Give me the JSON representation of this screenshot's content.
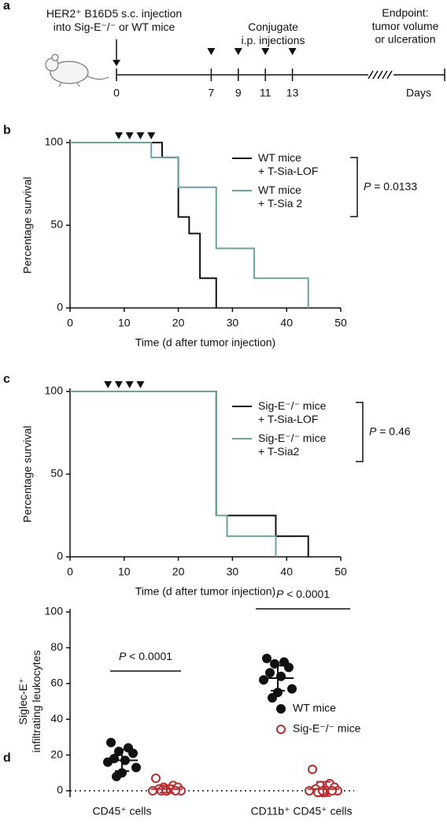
{
  "timeline": {
    "label": "a",
    "left_note": "HER2⁺ B16D5 s.c. injection\ninto Sig-E⁻/⁻ or WT mice",
    "middle_note": "Conjugate\ni.p. injections",
    "right_note": "Endpoint:\ntumor volume\nor ulceration",
    "days": [
      0,
      7,
      9,
      11,
      13
    ],
    "injection_days": [
      7,
      9,
      11,
      13
    ],
    "unit": "Days"
  },
  "chart_data": [
    {
      "type": "step",
      "label": "b",
      "xlabel": "Time (d after tumor injection)",
      "ylabel": "Percentage survival",
      "xlim": [
        0,
        50
      ],
      "xticks": [
        0,
        10,
        20,
        30,
        40,
        50
      ],
      "ylim": [
        0,
        100
      ],
      "yticks": [
        0,
        50,
        100
      ],
      "injection_days": [
        9,
        11,
        13,
        15
      ],
      "series": [
        {
          "name": "WT mice\n+ T-Sia-LOF",
          "color": "#111111",
          "x": [
            0,
            17,
            20,
            22,
            24,
            27
          ],
          "values": [
            100,
            91,
            55,
            45,
            18,
            0
          ]
        },
        {
          "name": "WT mice\n+ T-Sia 2",
          "color": "#6aa59d",
          "x": [
            0,
            15,
            20,
            27,
            34,
            44
          ],
          "values": [
            100,
            91,
            73,
            36,
            18,
            0
          ]
        }
      ],
      "pvalue": "P = 0.0133"
    },
    {
      "type": "step",
      "label": "c",
      "xlabel": "Time (d after tumor injection)",
      "ylabel": "Percentage survival",
      "xlim": [
        0,
        50
      ],
      "xticks": [
        0,
        10,
        20,
        30,
        40,
        50
      ],
      "ylim": [
        0,
        100
      ],
      "yticks": [
        0,
        50,
        100
      ],
      "injection_days": [
        7,
        9,
        11,
        13
      ],
      "series": [
        {
          "name": "Sig-E⁻/⁻ mice\n+ T-Sia-LOF",
          "color": "#111111",
          "x": [
            0,
            27,
            38,
            44
          ],
          "values": [
            100,
            25,
            12.5,
            0
          ]
        },
        {
          "name": "Sig-E⁻/⁻ mice\n+ T-Sia2",
          "color": "#6aa59d",
          "x": [
            0,
            27,
            29,
            38
          ],
          "values": [
            100,
            25,
            12.5,
            0
          ]
        }
      ],
      "pvalue": "P = 0.46"
    },
    {
      "type": "dot",
      "label": "d",
      "ylabel": "Siglec-E⁺\ninfiltrating leukocytes",
      "categories": [
        "CD45⁺ cells",
        "CD11b⁺ CD45⁺ cells"
      ],
      "ylim": [
        0,
        100
      ],
      "yticks": [
        0,
        20,
        40,
        60,
        80,
        100
      ],
      "series": [
        {
          "name": "WT mice",
          "color": "#111111",
          "filled": true,
          "values": [
            [
              27,
              24,
              22,
              21,
              18,
              17,
              16,
              13,
              10,
              8
            ],
            [
              74,
              72,
              71,
              69,
              66,
              64,
              62,
              57,
              55,
              52
            ]
          ],
          "mean": [
            17,
            63
          ],
          "sd": [
            6,
            7
          ]
        },
        {
          "name": "Sig-E⁻/⁻ mice",
          "color": "#c0292b",
          "filled": false,
          "values": [
            [
              7,
              3,
              2,
              2,
              1,
              1,
              0,
              0,
              0,
              0,
              0,
              0
            ],
            [
              12,
              4,
              3,
              2,
              1,
              0,
              0,
              0,
              -1,
              -1,
              0,
              0
            ]
          ],
          "mean": [
            1,
            1
          ],
          "sd": [
            2,
            4
          ]
        }
      ],
      "comparisons": [
        "P < 0.0001",
        "P < 0.0001"
      ]
    }
  ]
}
